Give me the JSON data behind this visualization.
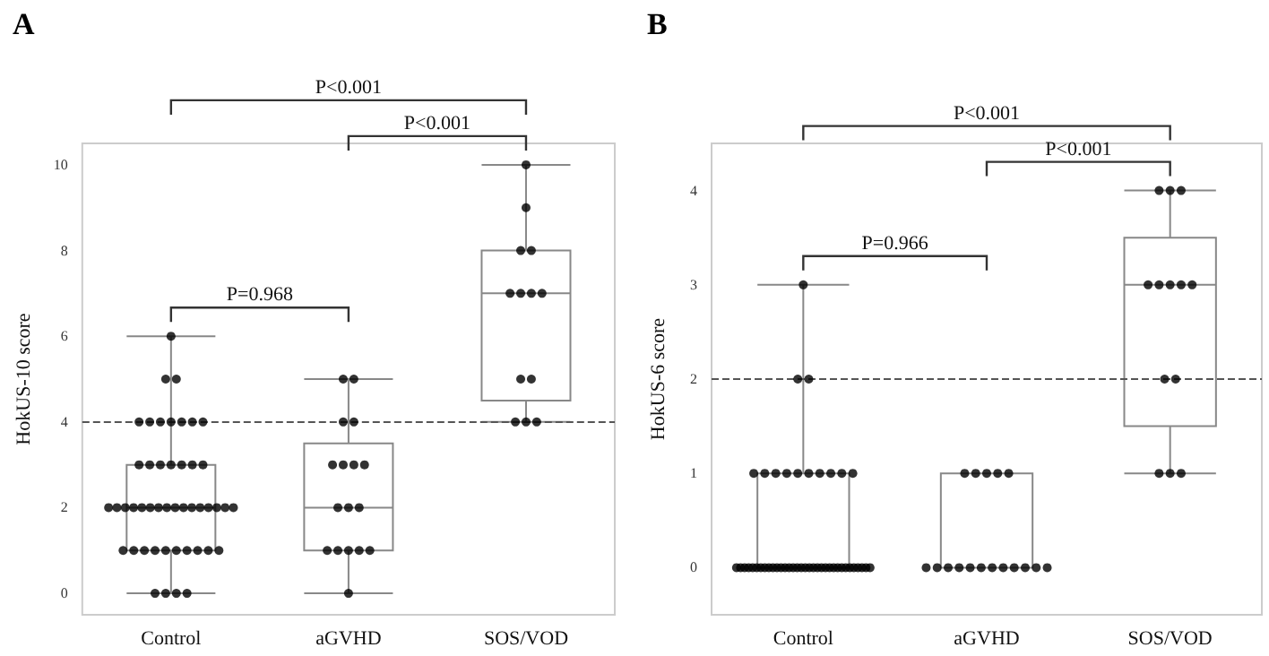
{
  "chart_data": [
    {
      "type": "box",
      "title": "A",
      "ylabel": "HokUS-10 score",
      "categories": [
        "Control",
        "aGVHD",
        "SOS/VOD"
      ],
      "boxes": [
        {
          "low": 0,
          "q1": 1,
          "median": 2,
          "q3": 3,
          "high": 6
        },
        {
          "low": 0,
          "q1": 1,
          "median": 2,
          "q3": 3.5,
          "high": 5
        },
        {
          "low": 4,
          "q1": 4.5,
          "median": 7,
          "q3": 8,
          "high": 10
        }
      ],
      "series": [
        {
          "type": "scatter",
          "color": "#000000",
          "x": [
            "Control",
            "Control",
            "Control",
            "Control",
            "Control",
            "Control",
            "Control",
            "Control",
            "Control",
            "Control",
            "Control",
            "Control",
            "Control",
            "Control",
            "Control",
            "Control",
            "Control",
            "Control",
            "Control",
            "Control",
            "Control",
            "Control",
            "Control",
            "Control",
            "Control",
            "Control",
            "Control",
            "Control",
            "Control",
            "Control",
            "Control",
            "Control",
            "Control",
            "Control",
            "Control",
            "Control",
            "Control",
            "Control",
            "Control",
            "Control",
            "Control",
            "Control",
            "Control",
            "Control",
            "Control",
            "Control",
            "Control"
          ],
          "values": [
            0,
            0,
            0,
            0,
            1,
            1,
            1,
            1,
            1,
            1,
            1,
            1,
            1,
            1,
            2,
            2,
            2,
            2,
            2,
            2,
            2,
            2,
            2,
            2,
            2,
            2,
            2,
            2,
            2,
            2,
            3,
            3,
            3,
            3,
            3,
            3,
            3,
            4,
            4,
            4,
            4,
            4,
            4,
            4,
            5,
            5,
            6
          ]
        },
        {
          "type": "scatter",
          "color": "#000000",
          "x": [
            "aGVHD",
            "aGVHD",
            "aGVHD",
            "aGVHD",
            "aGVHD",
            "aGVHD",
            "aGVHD",
            "aGVHD",
            "aGVHD",
            "aGVHD",
            "aGVHD",
            "aGVHD",
            "aGVHD",
            "aGVHD",
            "aGVHD",
            "aGVHD",
            "aGVHD"
          ],
          "values": [
            0,
            1,
            1,
            1,
            1,
            1,
            2,
            2,
            2,
            3,
            3,
            3,
            3,
            4,
            4,
            5,
            5
          ]
        },
        {
          "type": "scatter",
          "color": "#000000",
          "x": [
            "SOS/VOD",
            "SOS/VOD",
            "SOS/VOD",
            "SOS/VOD",
            "SOS/VOD",
            "SOS/VOD",
            "SOS/VOD",
            "SOS/VOD",
            "SOS/VOD",
            "SOS/VOD",
            "SOS/VOD",
            "SOS/VOD",
            "SOS/VOD"
          ],
          "values": [
            4,
            4,
            4,
            5,
            5,
            7,
            7,
            7,
            7,
            8,
            8,
            9,
            10
          ]
        }
      ],
      "marker": "circle",
      "ylim": [
        -0.5,
        10.5
      ],
      "yticks": [
        0,
        2,
        4,
        6,
        8,
        10
      ],
      "grid": false,
      "ref_lines": [
        {
          "axis": "y",
          "value": 4,
          "line_style": "dashed",
          "color": "#555555"
        }
      ],
      "annotations": [
        "P<0.001",
        "P<0.001",
        "P=0.968"
      ]
    },
    {
      "type": "box",
      "title": "B",
      "ylabel": "HokUS-6 score",
      "categories": [
        "Control",
        "aGVHD",
        "SOS/VOD"
      ],
      "boxes": [
        {
          "low": 0,
          "q1": 0,
          "median": 0,
          "q3": 1,
          "high": 3
        },
        {
          "low": 0,
          "q1": 0,
          "median": 0,
          "q3": 1,
          "high": 1
        },
        {
          "low": 1,
          "q1": 1.5,
          "median": 3,
          "q3": 3.5,
          "high": 4
        }
      ],
      "series": [
        {
          "type": "scatter",
          "color": "#000000",
          "x": [
            "Control",
            "Control",
            "Control",
            "Control",
            "Control",
            "Control",
            "Control",
            "Control",
            "Control",
            "Control",
            "Control",
            "Control",
            "Control",
            "Control",
            "Control",
            "Control",
            "Control",
            "Control",
            "Control",
            "Control",
            "Control",
            "Control",
            "Control",
            "Control",
            "Control",
            "Control",
            "Control",
            "Control",
            "Control",
            "Control",
            "Control",
            "Control",
            "Control",
            "Control",
            "Control",
            "Control",
            "Control",
            "Control",
            "Control",
            "Control",
            "Control",
            "Control",
            "Control",
            "Control",
            "Control",
            "Control",
            "Control"
          ],
          "values": [
            0,
            0,
            0,
            0,
            0,
            0,
            0,
            0,
            0,
            0,
            0,
            0,
            0,
            0,
            0,
            0,
            0,
            0,
            0,
            0,
            0,
            0,
            0,
            0,
            0,
            0,
            0,
            0,
            0,
            0,
            0,
            0,
            0,
            0,
            1,
            1,
            1,
            1,
            1,
            1,
            1,
            1,
            1,
            1,
            2,
            2,
            3
          ]
        },
        {
          "type": "scatter",
          "color": "#000000",
          "x": [
            "aGVHD",
            "aGVHD",
            "aGVHD",
            "aGVHD",
            "aGVHD",
            "aGVHD",
            "aGVHD",
            "aGVHD",
            "aGVHD",
            "aGVHD",
            "aGVHD",
            "aGVHD",
            "aGVHD",
            "aGVHD",
            "aGVHD",
            "aGVHD",
            "aGVHD"
          ],
          "values": [
            0,
            0,
            0,
            0,
            0,
            0,
            0,
            0,
            0,
            0,
            0,
            0,
            1,
            1,
            1,
            1,
            1
          ]
        },
        {
          "type": "scatter",
          "color": "#000000",
          "x": [
            "SOS/VOD",
            "SOS/VOD",
            "SOS/VOD",
            "SOS/VOD",
            "SOS/VOD",
            "SOS/VOD",
            "SOS/VOD",
            "SOS/VOD",
            "SOS/VOD",
            "SOS/VOD",
            "SOS/VOD",
            "SOS/VOD",
            "SOS/VOD"
          ],
          "values": [
            1,
            1,
            1,
            2,
            2,
            3,
            3,
            3,
            3,
            3,
            4,
            4,
            4
          ]
        }
      ],
      "marker": "circle",
      "ylim": [
        -0.5,
        4.5
      ],
      "yticks": [
        0,
        1,
        2,
        3,
        4
      ],
      "grid": false,
      "ref_lines": [
        {
          "axis": "y",
          "value": 2,
          "line_style": "dashed",
          "color": "#555555"
        }
      ],
      "annotations": [
        "P<0.001",
        "P<0.001",
        "P=0.966"
      ]
    }
  ]
}
